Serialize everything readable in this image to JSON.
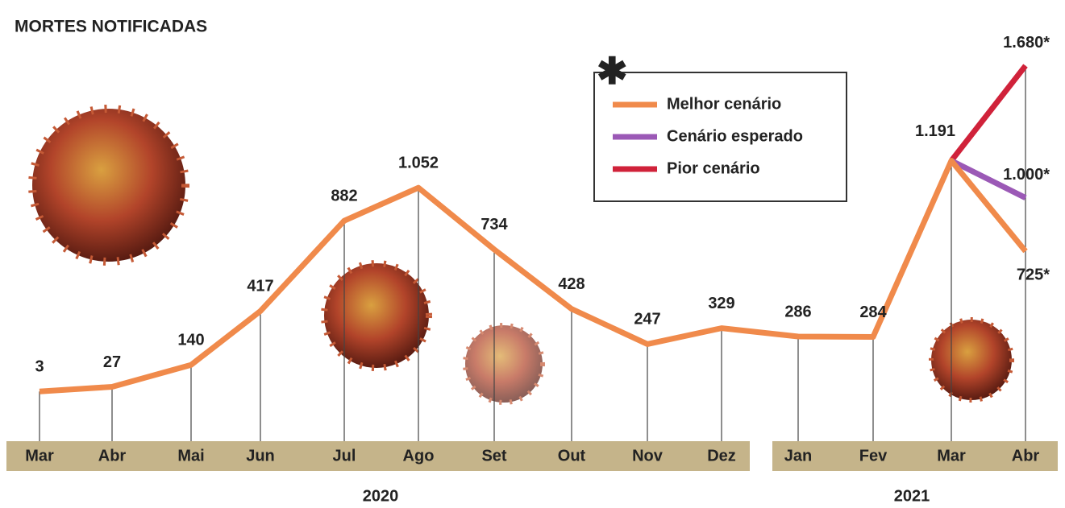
{
  "chart_data": {
    "type": "line",
    "title": "MORTES NOTIFICADAS",
    "categories": [
      "Mar",
      "Abr",
      "Mai",
      "Jun",
      "Jul",
      "Ago",
      "Set",
      "Out",
      "Nov",
      "Dez",
      "Jan",
      "Fev",
      "Mar",
      "Abr"
    ],
    "x_groups": [
      "2020",
      "2021"
    ],
    "series": [
      {
        "name": "Melhor cenário",
        "color": "#f08a4b",
        "values": [
          3,
          27,
          140,
          417,
          882,
          1052,
          734,
          428,
          247,
          329,
          286,
          284,
          1191,
          725
        ],
        "value_labels": [
          "3",
          "27",
          "140",
          "417",
          "882",
          "1.052",
          "734",
          "428",
          "247",
          "329",
          "286",
          "284",
          "1.191",
          "725*"
        ]
      },
      {
        "name": "Cenário esperado",
        "color": "#9b59b6",
        "values": [
          null,
          null,
          null,
          null,
          null,
          null,
          null,
          null,
          null,
          null,
          null,
          null,
          1191,
          1000
        ],
        "value_labels": [
          null,
          null,
          null,
          null,
          null,
          null,
          null,
          null,
          null,
          null,
          null,
          null,
          null,
          "1.000*"
        ]
      },
      {
        "name": "Pior cenário",
        "color": "#d0223a",
        "values": [
          null,
          null,
          null,
          null,
          null,
          null,
          null,
          null,
          null,
          null,
          null,
          null,
          1191,
          1680
        ],
        "value_labels": [
          null,
          null,
          null,
          null,
          null,
          null,
          null,
          null,
          null,
          null,
          null,
          null,
          null,
          "1.680*"
        ]
      }
    ]
  }
}
